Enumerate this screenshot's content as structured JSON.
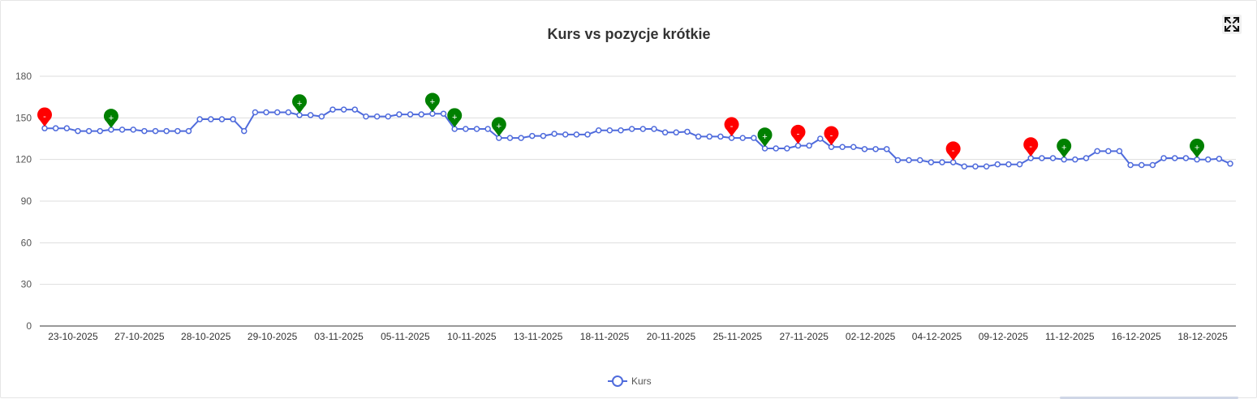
{
  "chart_data": {
    "type": "line",
    "title": "Kurs vs pozycje krótkie",
    "xlabel": "",
    "ylabel": "",
    "ylim": [
      0,
      180
    ],
    "yticks": [
      0,
      30,
      60,
      90,
      120,
      150,
      180
    ],
    "grid": true,
    "legend": "bottom-center",
    "x_tick_labels": [
      "23-10-2025",
      "27-10-2025",
      "28-10-2025",
      "29-10-2025",
      "03-11-2025",
      "05-11-2025",
      "10-11-2025",
      "13-11-2025",
      "18-11-2025",
      "20-11-2025",
      "25-11-2025",
      "27-11-2025",
      "02-12-2025",
      "04-12-2025",
      "09-12-2025",
      "11-12-2025",
      "16-12-2025",
      "18-12-2025"
    ],
    "series": [
      {
        "name": "Kurs",
        "color": "#4f6bdc",
        "values": [
          142.5,
          142.5,
          142.5,
          140.5,
          140.5,
          140.5,
          141.5,
          141.5,
          141.5,
          140.5,
          140.5,
          140.5,
          140.5,
          140.5,
          149,
          149,
          149,
          149,
          140.5,
          154,
          154,
          154,
          154,
          152,
          152,
          151,
          156,
          156,
          156,
          151,
          151,
          151,
          152.5,
          152.5,
          152.5,
          153,
          153,
          142,
          142,
          142,
          142,
          135.5,
          135.5,
          135.5,
          137,
          137,
          138.5,
          138,
          138,
          138,
          141,
          141,
          141,
          142,
          142,
          142,
          139.5,
          139.5,
          140,
          136.5,
          136.5,
          136.5,
          135.5,
          135.5,
          135.5,
          128,
          128,
          128,
          130,
          130,
          135,
          129,
          129,
          129,
          127.5,
          127.5,
          127.5,
          119.5,
          119.5,
          119.5,
          118,
          118,
          118,
          115,
          115,
          115,
          116.5,
          116.5,
          116.5,
          121,
          121,
          121,
          120,
          120,
          121,
          126,
          126,
          126,
          116,
          116,
          116,
          121,
          121,
          121,
          120,
          120,
          120.5,
          117
        ]
      }
    ],
    "markers": [
      {
        "index": 0,
        "type": "-",
        "color": "#ff0000"
      },
      {
        "index": 6,
        "type": "+",
        "color": "#008000"
      },
      {
        "index": 23,
        "type": "+",
        "color": "#008000"
      },
      {
        "index": 35,
        "type": "+",
        "color": "#008000"
      },
      {
        "index": 37,
        "type": "+",
        "color": "#008000"
      },
      {
        "index": 41,
        "type": "+",
        "color": "#008000"
      },
      {
        "index": 62,
        "type": "-",
        "color": "#ff0000"
      },
      {
        "index": 65,
        "type": "+",
        "color": "#008000"
      },
      {
        "index": 68,
        "type": "-",
        "color": "#ff0000"
      },
      {
        "index": 71,
        "type": "-",
        "color": "#ff0000"
      },
      {
        "index": 82,
        "type": "-",
        "color": "#ff0000"
      },
      {
        "index": 89,
        "type": "-",
        "color": "#ff0000"
      },
      {
        "index": 92,
        "type": "+",
        "color": "#008000"
      },
      {
        "index": 104,
        "type": "+",
        "color": "#008000"
      }
    ]
  },
  "controls": {
    "fullscreen_icon": "expand-arrows-icon"
  }
}
